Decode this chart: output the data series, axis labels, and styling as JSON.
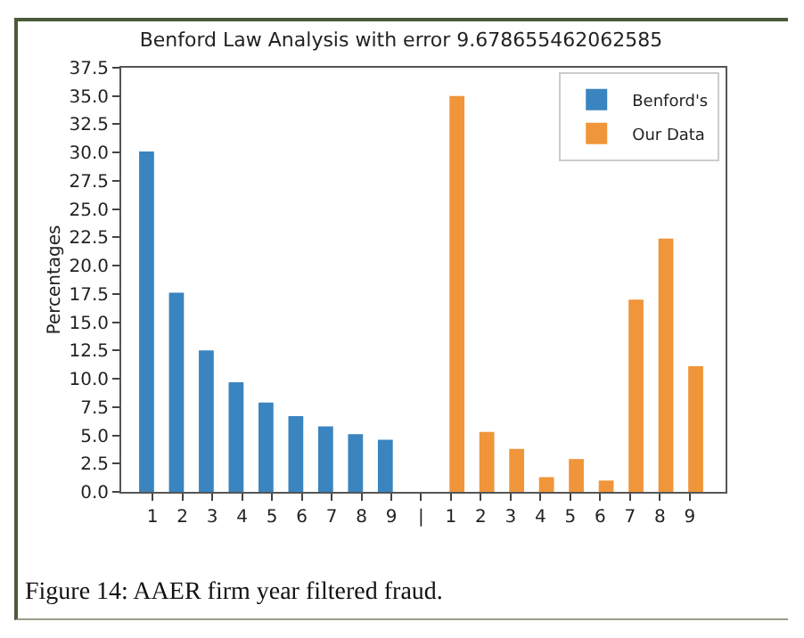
{
  "chart_data": {
    "type": "bar",
    "title": "Benford Law Analysis with error 9.678655462062585",
    "ylabel": "Percentages",
    "categories": [
      "1",
      "2",
      "3",
      "4",
      "5",
      "6",
      "7",
      "8",
      "9",
      "|",
      "1",
      "2",
      "3",
      "4",
      "5",
      "6",
      "7",
      "8",
      "9"
    ],
    "series": [
      {
        "name": "Benford's",
        "color": "#3a84bf",
        "values": [
          30.1,
          17.6,
          12.5,
          9.7,
          7.9,
          6.7,
          5.8,
          5.1,
          4.6,
          null,
          null,
          null,
          null,
          null,
          null,
          null,
          null,
          null,
          null
        ]
      },
      {
        "name": "Our Data",
        "color": "#f0953a",
        "values": [
          null,
          null,
          null,
          null,
          null,
          null,
          null,
          null,
          null,
          null,
          35.0,
          5.3,
          3.8,
          1.3,
          2.9,
          1.0,
          17.0,
          22.4,
          11.1
        ]
      }
    ],
    "ylim": [
      0,
      37.5
    ],
    "yticks": [
      {
        "value": 0,
        "label": "0.0"
      },
      {
        "value": 2.5,
        "label": "2.5"
      },
      {
        "value": 5,
        "label": "5.0"
      },
      {
        "value": 7.5,
        "label": "7.5"
      },
      {
        "value": 10,
        "label": "10.0"
      },
      {
        "value": 12.5,
        "label": "12.5"
      },
      {
        "value": 15,
        "label": "15.0"
      },
      {
        "value": 17.5,
        "label": "17.5"
      },
      {
        "value": 20,
        "label": "20.0"
      },
      {
        "value": 22.5,
        "label": "22.5"
      },
      {
        "value": 25,
        "label": "25.0"
      },
      {
        "value": 27.5,
        "label": "27.5"
      },
      {
        "value": 30,
        "label": "30.0"
      },
      {
        "value": 32.5,
        "label": "32.5"
      },
      {
        "value": 35,
        "label": "35.0"
      },
      {
        "value": 37.5,
        "label": "37.5"
      }
    ],
    "grid": false,
    "legend": "top right",
    "annotations": [
      "Figure 14: AAER firm year filtered fraud."
    ]
  }
}
